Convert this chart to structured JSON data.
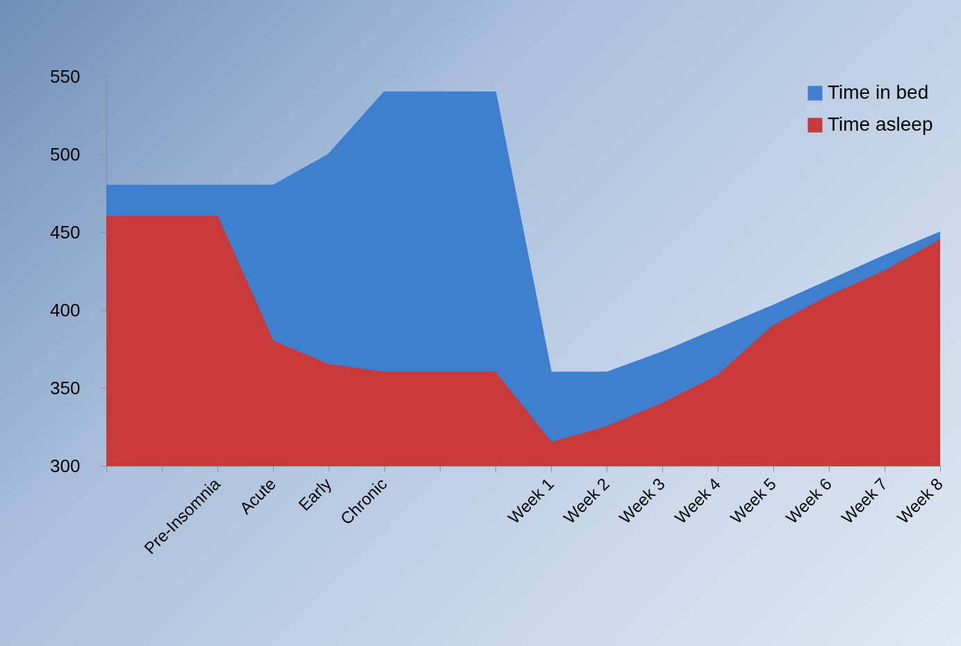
{
  "chart_data": {
    "type": "area",
    "categories": [
      null,
      null,
      "Pre-Insomnia",
      "Acute",
      "Early",
      "Chronic",
      null,
      null,
      "Week 1",
      "Week 2",
      "Week 3",
      "Week 4",
      "Week 5",
      "Week 6",
      "Week 7",
      "Week 8"
    ],
    "series": [
      {
        "name": "Time in bed",
        "color": "#3f7fd0",
        "values": [
          480,
          480,
          480,
          480,
          500,
          540,
          540,
          540,
          360,
          360,
          373,
          388,
          403,
          419,
          435,
          450
        ]
      },
      {
        "name": "Time asleep",
        "color": "#c83a3a",
        "values": [
          460,
          460,
          460,
          380,
          365,
          360,
          360,
          360,
          315,
          325,
          340,
          358,
          390,
          409,
          425,
          445
        ]
      }
    ],
    "ylim": [
      300,
      550
    ],
    "yticks": [
      300,
      350,
      400,
      450,
      500,
      550
    ],
    "grid": false,
    "legend": "top right"
  }
}
